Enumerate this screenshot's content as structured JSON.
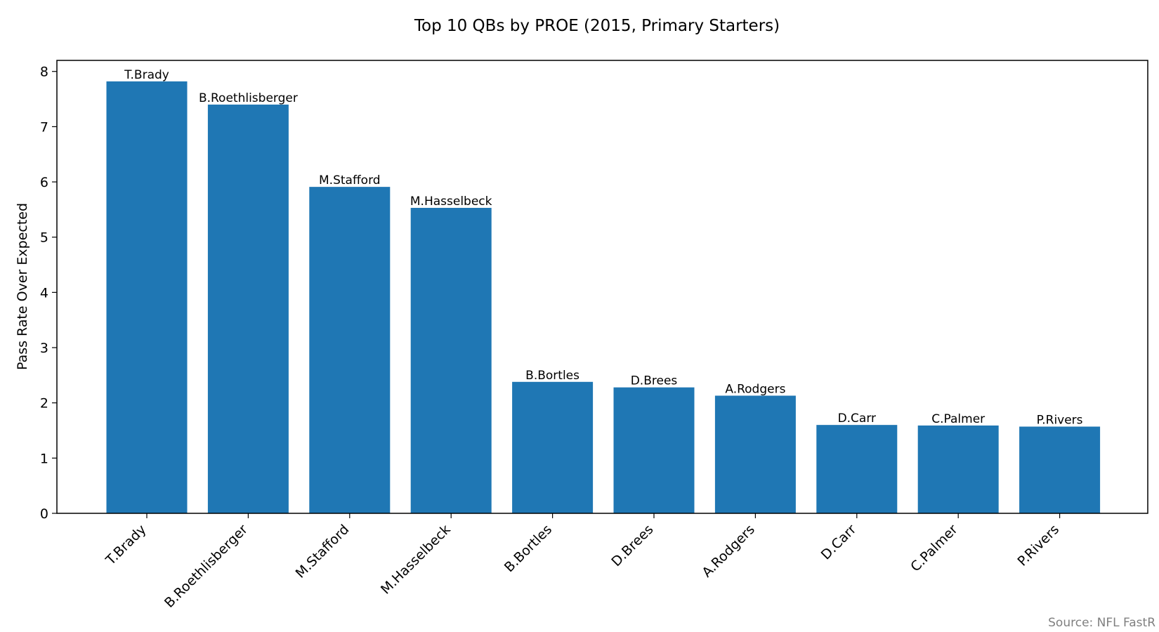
{
  "chart_data": {
    "type": "bar",
    "title": "Top 10 QBs by PROE (2015, Primary Starters)",
    "xlabel": "",
    "ylabel": "Pass Rate Over Expected",
    "categories": [
      "T.Brady",
      "B.Roethlisberger",
      "M.Stafford",
      "M.Hasselbeck",
      "B.Bortles",
      "D.Brees",
      "A.Rodgers",
      "D.Carr",
      "C.Palmer",
      "P.Rivers"
    ],
    "values": [
      7.82,
      7.4,
      5.91,
      5.53,
      2.38,
      2.28,
      2.13,
      1.6,
      1.59,
      1.57
    ],
    "data_labels": [
      "T.Brady",
      "B.Roethlisberger",
      "M.Stafford",
      "M.Hasselbeck",
      "B.Bortles",
      "D.Brees",
      "A.Rodgers",
      "D.Carr",
      "C.Palmer",
      "P.Rivers"
    ],
    "ylim": [
      0,
      8.2
    ],
    "yticks": [
      "0",
      "1",
      "2",
      "3",
      "4",
      "5",
      "6",
      "7",
      "8"
    ],
    "grid": false,
    "legend": "none",
    "bar_color": "#1f77b4",
    "source": "Source: NFL FastR"
  }
}
